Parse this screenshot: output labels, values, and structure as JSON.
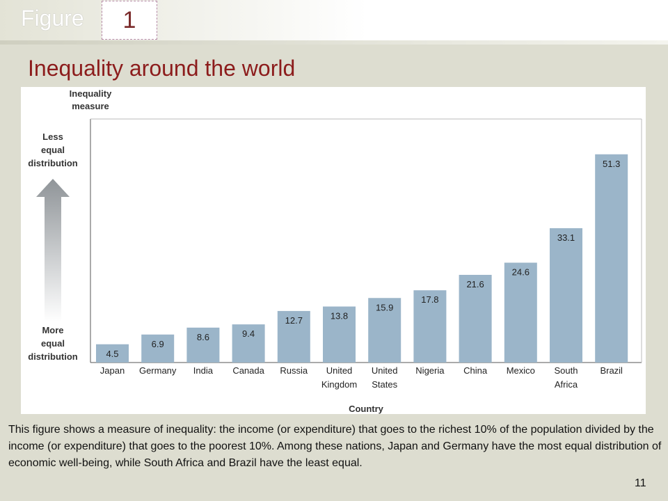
{
  "header": {
    "figure_label": "Figure",
    "figure_number": "1"
  },
  "title": "Inequality around the world",
  "chart_data": {
    "type": "bar",
    "title": "Inequality around the world",
    "ylabel": "Inequality measure",
    "xlabel": "Country",
    "top_annotation": "Less equal distribution",
    "bottom_annotation": "More equal distribution",
    "categories": [
      "Japan",
      "Germany",
      "India",
      "Canada",
      "Russia",
      "United Kingdom",
      "United States",
      "Nigeria",
      "China",
      "Mexico",
      "South Africa",
      "Brazil"
    ],
    "category_lines": [
      [
        "Japan"
      ],
      [
        "Germany"
      ],
      [
        "India"
      ],
      [
        "Canada"
      ],
      [
        "Russia"
      ],
      [
        "United",
        "Kingdom"
      ],
      [
        "United",
        "States"
      ],
      [
        "Nigeria"
      ],
      [
        "China"
      ],
      [
        "Mexico"
      ],
      [
        "South",
        "Africa"
      ],
      [
        "Brazil"
      ]
    ],
    "values": [
      4.5,
      6.9,
      8.6,
      9.4,
      12.7,
      13.8,
      15.9,
      17.8,
      21.6,
      24.6,
      33.1,
      51.3
    ],
    "value_labels": [
      "4.5",
      "6.9",
      "8.6",
      "9.4",
      "12.7",
      "13.8",
      "15.9",
      "17.8",
      "21.6",
      "24.6",
      "33.1",
      "51.3"
    ],
    "ylim": [
      0,
      60
    ],
    "bar_color": "#9bb5c9",
    "grid": false
  },
  "caption": "This figure shows a measure of inequality: the income (or expenditure) that goes to the richest 10% of the population divided by the income (or expenditure) that goes to the poorest 10%. Among these nations, Japan and Germany have the most equal distribution of economic well-being, while South Africa and Brazil have the least equal.",
  "page_number": "11",
  "colors": {
    "title": "#8c1c1c",
    "bar": "#9bb5c9"
  }
}
